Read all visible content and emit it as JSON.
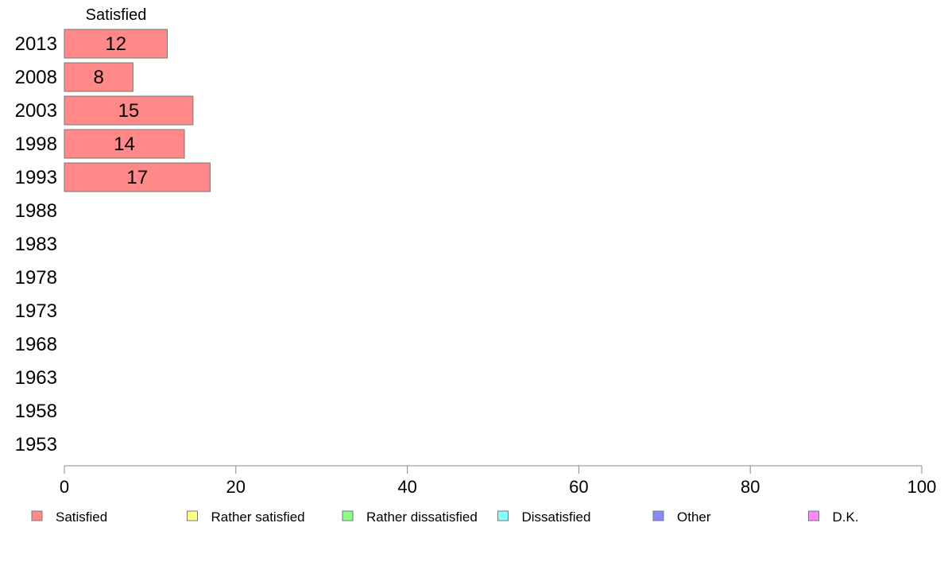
{
  "chart_data": {
    "type": "bar",
    "orientation": "horizontal",
    "stacked": true,
    "categories": [
      "2013",
      "2008",
      "2003",
      "1998",
      "1993",
      "1988",
      "1983",
      "1978",
      "1973",
      "1968",
      "1963",
      "1958",
      "1953"
    ],
    "series": [
      {
        "name": "Satisfied",
        "color": "#ff8888",
        "values": [
          12,
          8,
          15,
          14,
          17,
          null,
          null,
          null,
          null,
          null,
          null,
          null,
          null
        ]
      },
      {
        "name": "Rather satisfied",
        "color": "#ffff88",
        "values": [
          null,
          null,
          null,
          null,
          null,
          null,
          null,
          null,
          null,
          null,
          null,
          null,
          null
        ]
      },
      {
        "name": "Rather dissatisfied",
        "color": "#88ff88",
        "values": [
          null,
          null,
          null,
          null,
          null,
          null,
          null,
          null,
          null,
          null,
          null,
          null,
          null
        ]
      },
      {
        "name": "Dissatisfied",
        "color": "#88ffff",
        "values": [
          null,
          null,
          null,
          null,
          null,
          null,
          null,
          null,
          null,
          null,
          null,
          null,
          null
        ]
      },
      {
        "name": "Other",
        "color": "#8888ff",
        "values": [
          null,
          null,
          null,
          null,
          null,
          null,
          null,
          null,
          null,
          null,
          null,
          null,
          null
        ]
      },
      {
        "name": "D.K.",
        "color": "#ff88ff",
        "values": [
          null,
          null,
          null,
          null,
          null,
          null,
          null,
          null,
          null,
          null,
          null,
          null,
          null
        ]
      }
    ],
    "column_header": "Satisfied",
    "xlim": [
      0,
      100
    ],
    "xticks": [
      0,
      20,
      40,
      60,
      80,
      100
    ],
    "grid": false,
    "legend_position": "bottom"
  }
}
